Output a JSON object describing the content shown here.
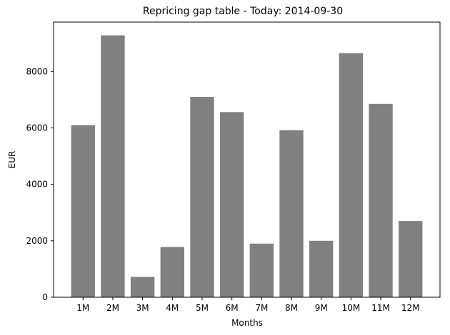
{
  "chart_data": {
    "type": "bar",
    "title": "Repricing gap table - Today: 2014-09-30",
    "xlabel": "Months",
    "ylabel": "EUR",
    "categories": [
      "1M",
      "2M",
      "3M",
      "4M",
      "5M",
      "6M",
      "7M",
      "8M",
      "9M",
      "10M",
      "11M",
      "12M"
    ],
    "values": [
      6100,
      9280,
      720,
      1780,
      7100,
      6560,
      1900,
      5920,
      2000,
      8650,
      6850,
      2700
    ],
    "ylim": [
      0,
      9750
    ],
    "yticks": [
      0,
      2000,
      4000,
      6000,
      8000
    ],
    "bar_color": "#808080",
    "grid": false,
    "legend": "none"
  }
}
